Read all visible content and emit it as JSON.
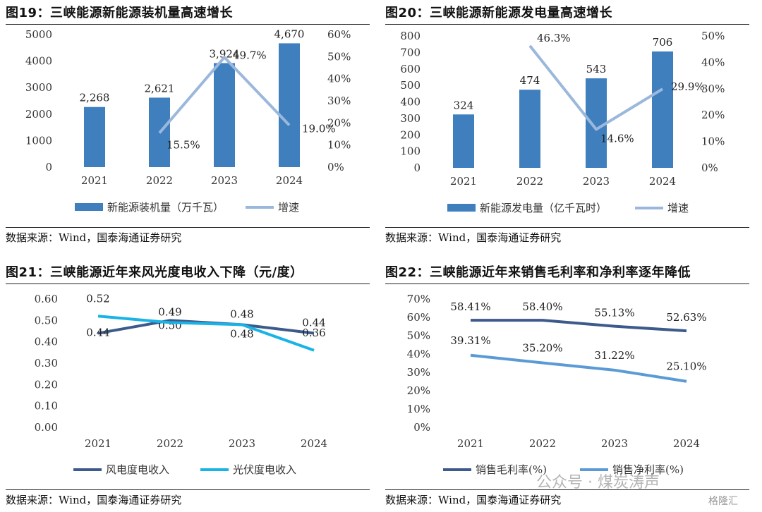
{
  "colors": {
    "bar": "#3f7fbe",
    "growth": "#9bb8dc",
    "wind": "#3d5a8c",
    "pv": "#19b3e6",
    "gross": "#3d5a8c",
    "net": "#5b9bd5"
  },
  "panels": [
    {
      "title": "图19：三峡能源新能源装机量高速增长",
      "source": "数据来源：Wind，国泰海通证券研究"
    },
    {
      "title": "图20：三峡能源新能源发电量高速增长",
      "source": "数据来源：Wind，国泰海通证券研究"
    },
    {
      "title": "图21：三峡能源近年来风光度电收入下降（元/度）",
      "source": "数据来源：Wind，国泰海通证券研究"
    },
    {
      "title": "图22：三峡能源近年来销售毛利率和净利率逐年降低",
      "source": "数据来源：Wind，国泰海通证券研究"
    }
  ],
  "watermark": "公众号 · 煤炭涛声",
  "watermark_logo": "格隆汇",
  "chart_data": [
    {
      "type": "bar",
      "categories": [
        "2021",
        "2022",
        "2023",
        "2024"
      ],
      "series": [
        {
          "name": "新能源装机量（万千瓦）",
          "values": [
            2268,
            2621,
            3924,
            4670
          ],
          "labels": [
            "2,268",
            "2,621",
            "3,924",
            "4,670"
          ]
        },
        {
          "name": "增速",
          "type": "line",
          "axis": "right",
          "x": [
            "2022",
            "2023",
            "2024"
          ],
          "values": [
            15.5,
            49.7,
            19.0
          ],
          "labels": [
            "15.5%",
            "49.7%",
            "19.0%"
          ]
        }
      ],
      "ylim": [
        0,
        5000
      ],
      "yticks": [
        "0",
        "1000",
        "2000",
        "3000",
        "4000",
        "5000"
      ],
      "y2lim": [
        0,
        60
      ],
      "y2ticks": [
        "0%",
        "10%",
        "20%",
        "30%",
        "40%",
        "50%",
        "60%"
      ],
      "legend": "bottom"
    },
    {
      "type": "bar",
      "categories": [
        "2021",
        "2022",
        "2023",
        "2024"
      ],
      "series": [
        {
          "name": "新能源发电量（亿千瓦时）",
          "values": [
            324,
            474,
            543,
            706
          ],
          "labels": [
            "324",
            "474",
            "543",
            "706"
          ]
        },
        {
          "name": "增速",
          "type": "line",
          "axis": "right",
          "x": [
            "2022",
            "2023",
            "2024"
          ],
          "values": [
            46.3,
            14.6,
            29.9
          ],
          "labels": [
            "46.3%",
            "14.6%",
            "29.9%"
          ]
        }
      ],
      "ylim": [
        0,
        800
      ],
      "yticks": [
        "0",
        "100",
        "200",
        "300",
        "400",
        "500",
        "600",
        "700",
        "800"
      ],
      "y2lim": [
        0,
        50
      ],
      "y2ticks": [
        "0%",
        "10%",
        "20%",
        "30%",
        "40%",
        "50%"
      ],
      "legend": "bottom"
    },
    {
      "type": "line",
      "categories": [
        "2021",
        "2022",
        "2023",
        "2024"
      ],
      "series": [
        {
          "name": "风电度电收入",
          "values": [
            0.44,
            0.5,
            0.48,
            0.44
          ],
          "labels": [
            "0.44",
            "0.50",
            "0.48",
            "0.44"
          ]
        },
        {
          "name": "光伏度电收入",
          "values": [
            0.52,
            0.49,
            0.48,
            0.36
          ],
          "labels": [
            "0.52",
            "0.49",
            "0.48",
            "0.36"
          ]
        }
      ],
      "ylim": [
        0,
        0.6
      ],
      "yticks": [
        "0.00",
        "0.10",
        "0.20",
        "0.30",
        "0.40",
        "0.50",
        "0.60"
      ],
      "legend": "bottom"
    },
    {
      "type": "line",
      "categories": [
        "2021",
        "2022",
        "2023",
        "2024"
      ],
      "series": [
        {
          "name": "销售毛利率(%)",
          "values": [
            58.41,
            58.4,
            55.13,
            52.63
          ],
          "labels": [
            "58.41%",
            "58.40%",
            "55.13%",
            "52.63%"
          ]
        },
        {
          "name": "销售净利率(%)",
          "values": [
            39.31,
            35.2,
            31.22,
            25.1
          ],
          "labels": [
            "39.31%",
            "35.20%",
            "31.22%",
            "25.10%"
          ]
        }
      ],
      "ylim": [
        0,
        70
      ],
      "yticks": [
        "0%",
        "10%",
        "20%",
        "30%",
        "40%",
        "50%",
        "60%",
        "70%"
      ],
      "legend": "bottom"
    }
  ]
}
